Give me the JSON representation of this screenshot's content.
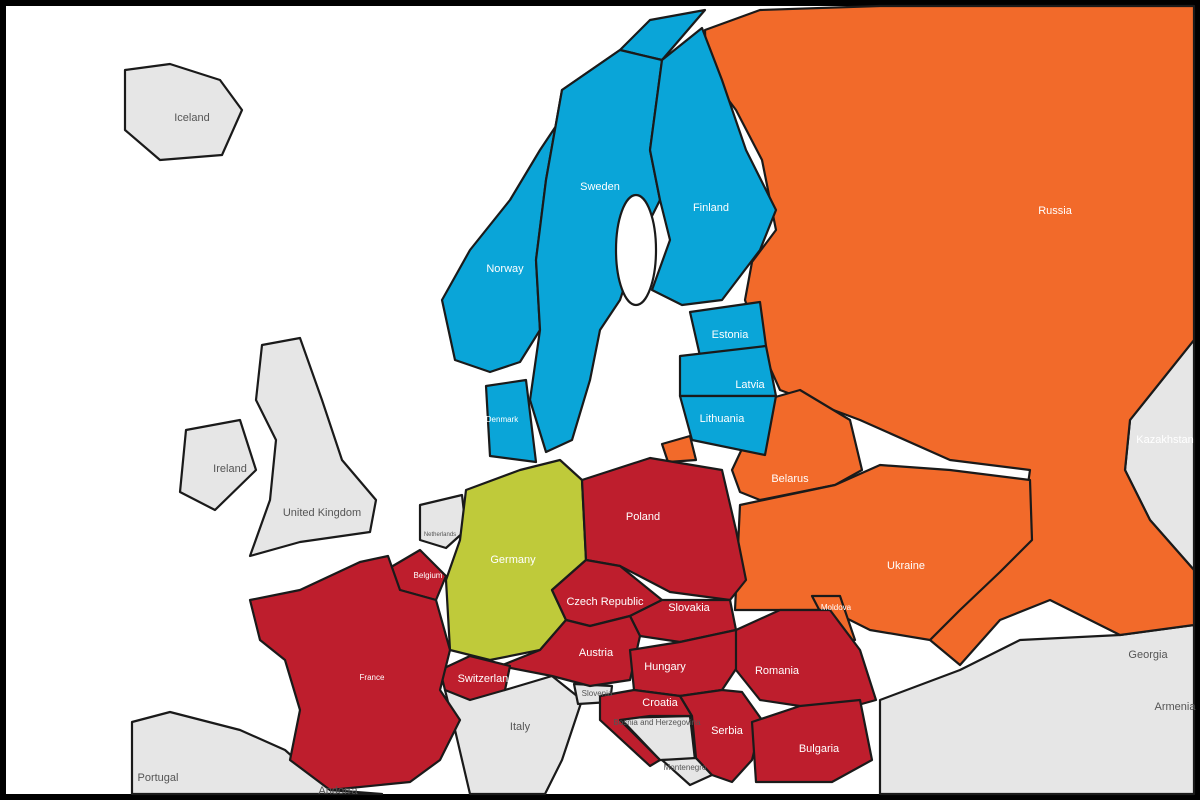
{
  "colors": {
    "blue": "#0aa5d8",
    "orange": "#f26a2a",
    "red": "#be1e2d",
    "green": "#bfca3a",
    "gray": "#e6e6e6",
    "sea": "#ffffff",
    "border": "#000000"
  },
  "countries": {
    "russia": {
      "name": "Russia",
      "group": "orange"
    },
    "belarus": {
      "name": "Belarus",
      "group": "orange"
    },
    "ukraine": {
      "name": "Ukraine",
      "group": "orange"
    },
    "moldova": {
      "name": "Moldova",
      "group": "orange"
    },
    "finland": {
      "name": "Finland",
      "group": "blue"
    },
    "sweden": {
      "name": "Sweden",
      "group": "blue"
    },
    "norway": {
      "name": "Norway",
      "group": "blue"
    },
    "denmark": {
      "name": "Denmark",
      "group": "blue"
    },
    "estonia": {
      "name": "Estonia",
      "group": "blue"
    },
    "latvia": {
      "name": "Latvia",
      "group": "blue"
    },
    "lithuania": {
      "name": "Lithuania",
      "group": "blue"
    },
    "germany": {
      "name": "Germany",
      "group": "green"
    },
    "poland": {
      "name": "Poland",
      "group": "red"
    },
    "czech": {
      "name": "Czech Republic",
      "group": "red"
    },
    "slovakia": {
      "name": "Slovakia",
      "group": "red"
    },
    "austria": {
      "name": "Austria",
      "group": "red"
    },
    "hungary": {
      "name": "Hungary",
      "group": "red"
    },
    "romania": {
      "name": "Romania",
      "group": "red"
    },
    "serbia": {
      "name": "Serbia",
      "group": "red"
    },
    "croatia": {
      "name": "Croatia",
      "group": "red"
    },
    "bulgaria": {
      "name": "Bulgaria",
      "group": "red"
    },
    "switzerland": {
      "name": "Switzerland",
      "group": "red"
    },
    "belgium": {
      "name": "Belgium",
      "group": "red"
    },
    "france": {
      "name": "France",
      "group": "red"
    },
    "iceland": {
      "name": "Iceland",
      "group": "gray"
    },
    "ireland": {
      "name": "Ireland",
      "group": "gray"
    },
    "uk": {
      "name": "United Kingdom",
      "group": "gray"
    },
    "netherlands": {
      "name": "Netherlands",
      "group": "gray"
    },
    "italy": {
      "name": "Italy",
      "group": "gray"
    },
    "slovenia": {
      "name": "Slovenia",
      "group": "gray"
    },
    "bosnia": {
      "name": "Bosnia and Herzegovina",
      "group": "gray"
    },
    "montenegro": {
      "name": "Montenegro",
      "group": "gray"
    },
    "portugal": {
      "name": "Portugal",
      "group": "gray"
    },
    "andorra": {
      "name": "Andorra",
      "group": "gray"
    },
    "georgia": {
      "name": "Georgia",
      "group": "gray"
    },
    "armenia": {
      "name": "Armenia",
      "group": "gray"
    },
    "kazakhstan": {
      "name": "Kazakhstan",
      "group": "gray"
    }
  }
}
